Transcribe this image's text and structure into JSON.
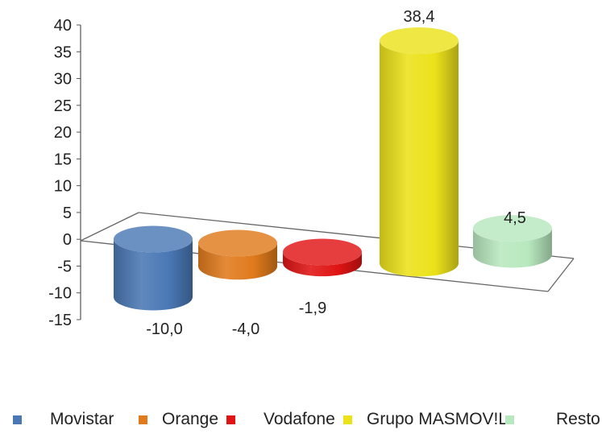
{
  "chart_data": {
    "type": "bar",
    "style": "3d-cylinder",
    "categories": [
      "Movistar",
      "Orange",
      "Vodafone",
      "Grupo MASMOV!L",
      "Resto"
    ],
    "values": [
      -10.0,
      -4.0,
      -1.9,
      38.4,
      4.5
    ],
    "data_labels": [
      "-10,0",
      "-4,0",
      "-1,9",
      "38,4",
      "4,5"
    ],
    "colors": [
      "#4a78b5",
      "#e07a1c",
      "#e01414",
      "#ece21a",
      "#b8e8be"
    ],
    "yticks": [
      "40",
      "35",
      "30",
      "25",
      "20",
      "15",
      "10",
      "5",
      "0",
      "-5",
      "-10",
      "-15"
    ],
    "ylim": [
      -15,
      40
    ],
    "grid": false,
    "legend": "bottom",
    "title": "",
    "xlabel": "",
    "ylabel": ""
  }
}
